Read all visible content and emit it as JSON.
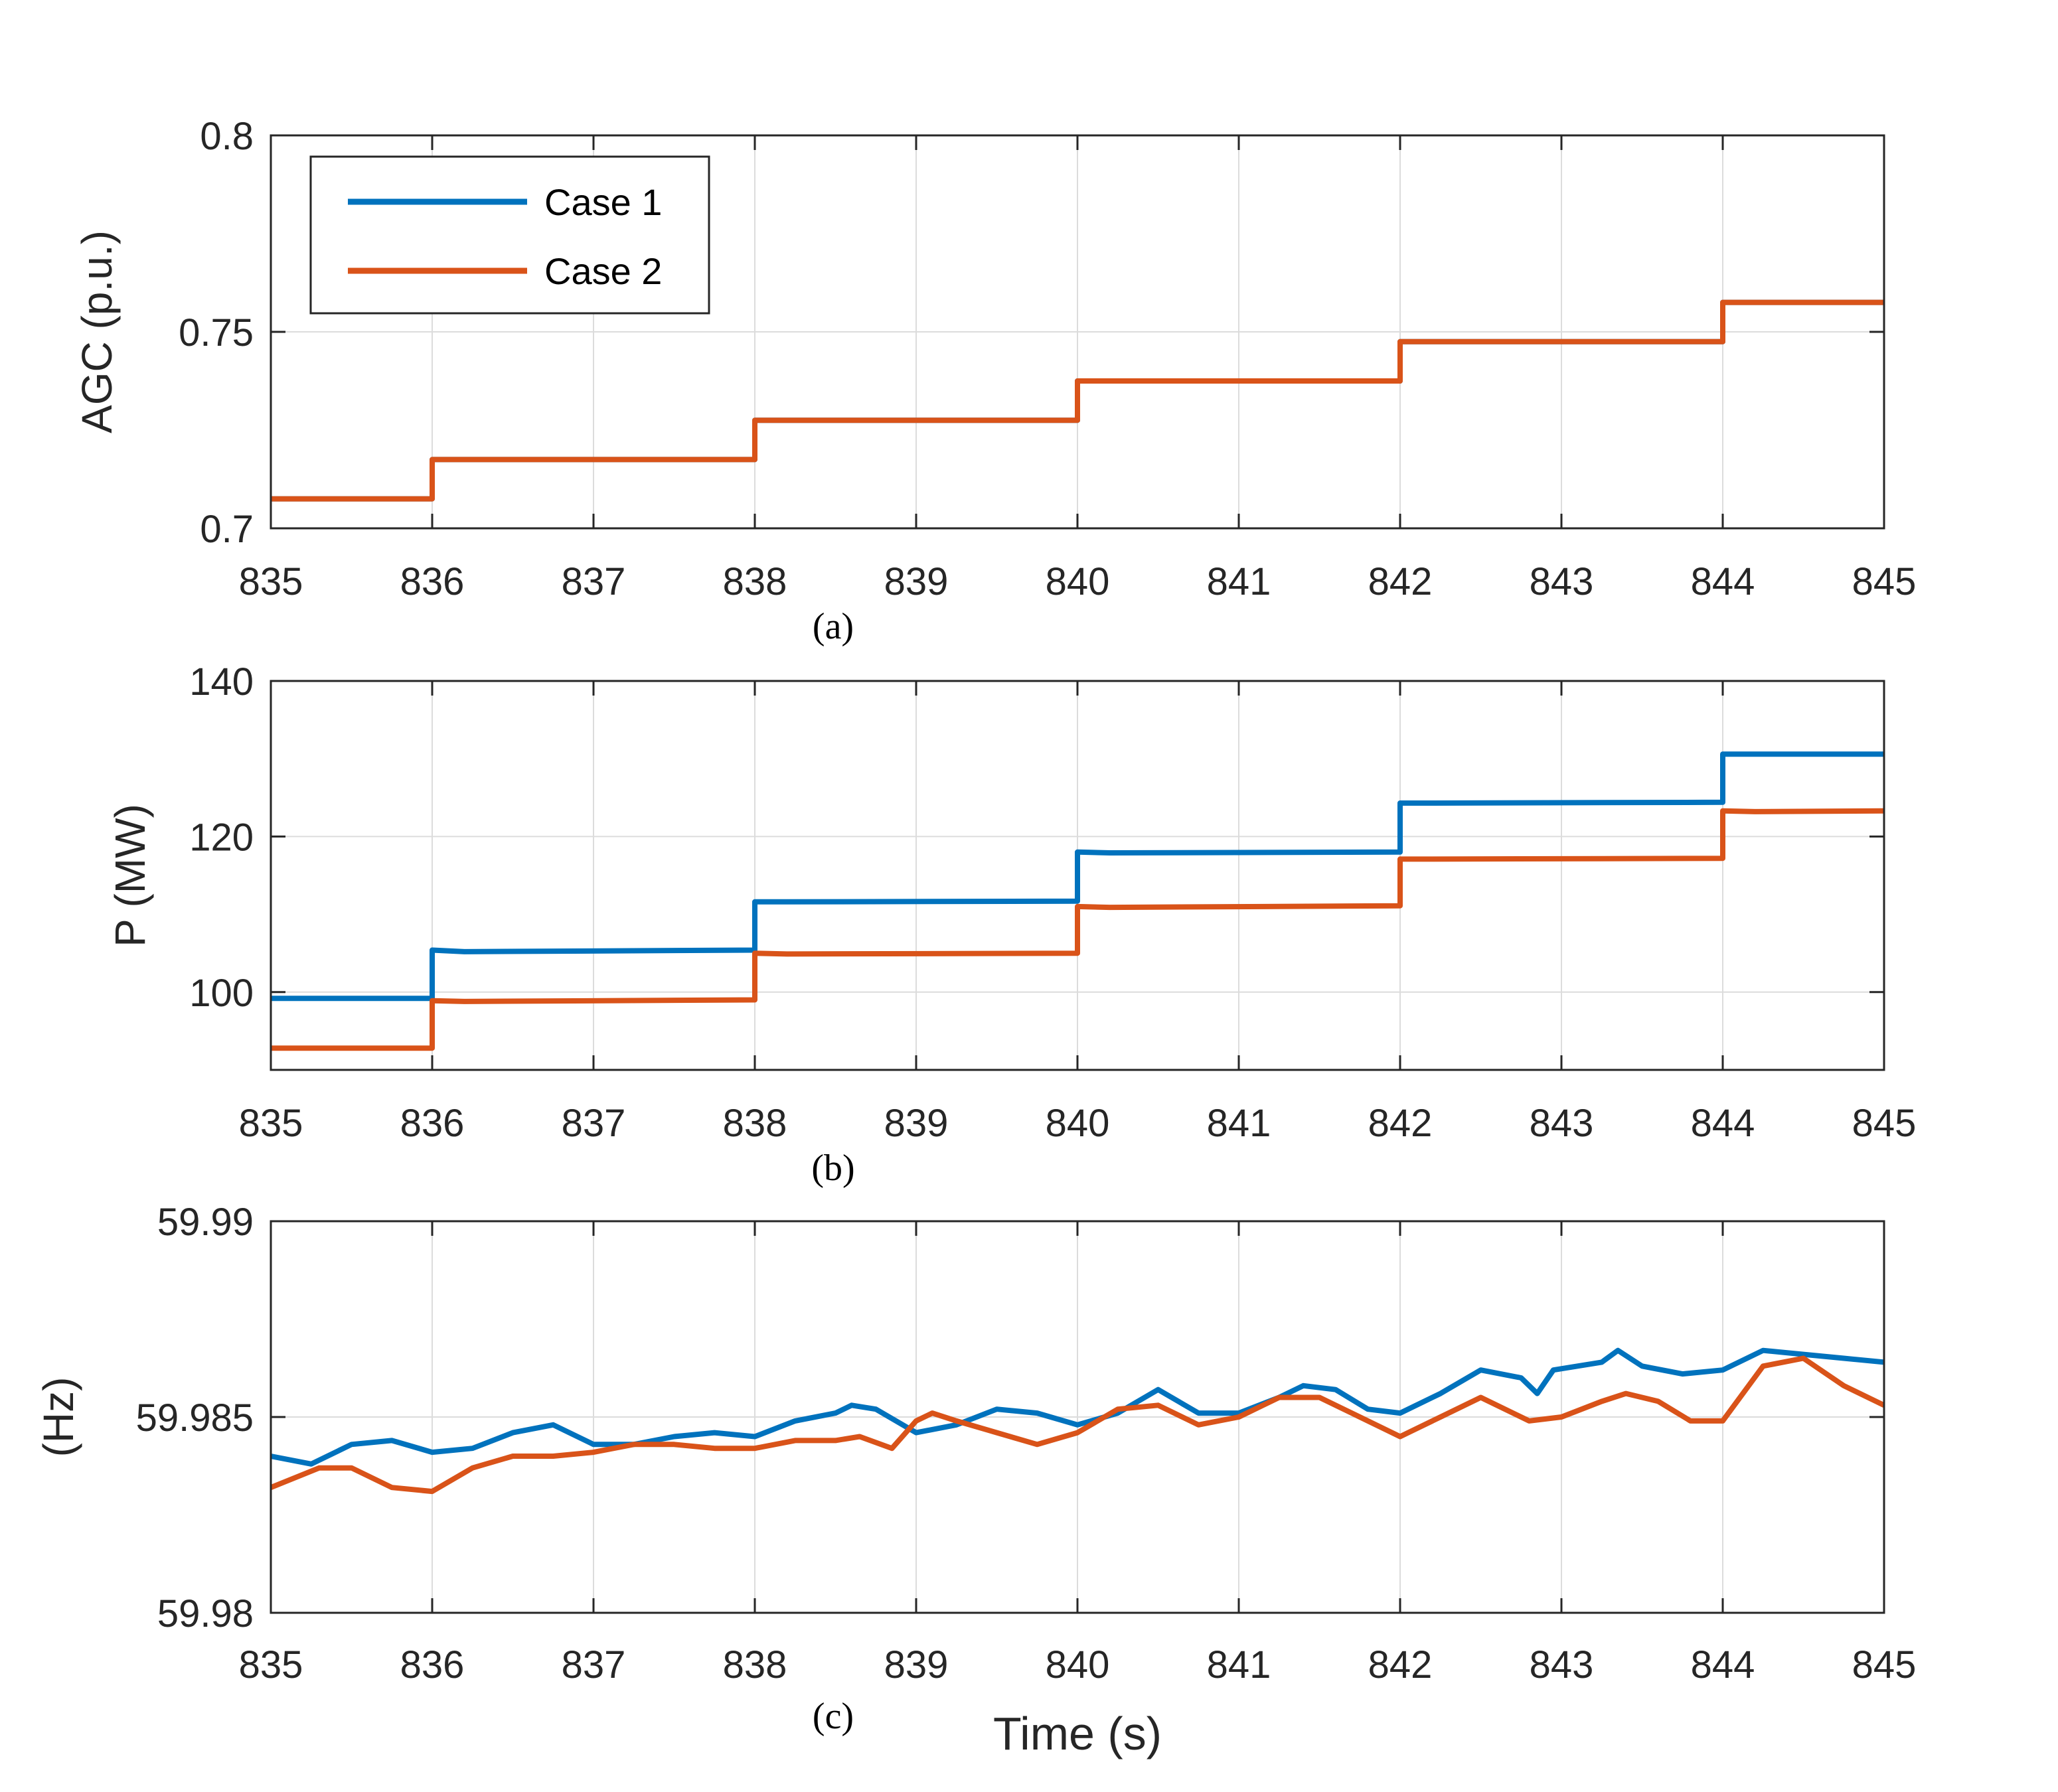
{
  "colors": {
    "case1": "#0072BD",
    "case2": "#D95319",
    "grid": "#DCDCDC",
    "axis": "#262626"
  },
  "legend": {
    "items": [
      "Case 1",
      "Case 2"
    ],
    "position": "top-left"
  },
  "chart_data": [
    {
      "type": "line",
      "title": "",
      "caption": "(a)",
      "xlabel": "",
      "ylabel": "AGC (p.u.)",
      "xlim": [
        835,
        845
      ],
      "ylim": [
        0.7,
        0.8
      ],
      "xticks": [
        835,
        836,
        837,
        838,
        839,
        840,
        841,
        842,
        843,
        844,
        845
      ],
      "yticks": [
        0.7,
        0.75,
        0.8
      ],
      "ytick_labels": [
        "0.7",
        "0.75",
        "0.8"
      ],
      "grid": true,
      "legend": true,
      "series": [
        {
          "name": "Case 1",
          "color_key": "case1",
          "x": [
            835,
            836,
            836,
            838,
            838,
            840,
            840,
            842,
            842,
            844,
            844,
            845
          ],
          "y": [
            0.7075,
            0.7075,
            0.7175,
            0.7175,
            0.7275,
            0.7275,
            0.7375,
            0.7375,
            0.7475,
            0.7475,
            0.7575,
            0.7575
          ]
        },
        {
          "name": "Case 2",
          "color_key": "case2",
          "x": [
            835,
            836,
            836,
            838,
            838,
            840,
            840,
            842,
            842,
            844,
            844,
            845
          ],
          "y": [
            0.7075,
            0.7075,
            0.7175,
            0.7175,
            0.7275,
            0.7275,
            0.7375,
            0.7375,
            0.7475,
            0.7475,
            0.7575,
            0.7575
          ]
        }
      ]
    },
    {
      "type": "line",
      "title": "",
      "caption": "(b)",
      "xlabel": "",
      "ylabel": "P (MW)",
      "xlim": [
        835,
        845
      ],
      "ylim": [
        90,
        140
      ],
      "xticks": [
        835,
        836,
        837,
        838,
        839,
        840,
        841,
        842,
        843,
        844,
        845
      ],
      "yticks": [
        100,
        120,
        140
      ],
      "ytick_labels": [
        "100",
        "120",
        "140"
      ],
      "grid": true,
      "legend": false,
      "series": [
        {
          "name": "Case 1",
          "color_key": "case1",
          "x": [
            835,
            836,
            836,
            836.2,
            838,
            838,
            838.2,
            840,
            840,
            840.2,
            842,
            842,
            842.2,
            844,
            844,
            844.2,
            845
          ],
          "y": [
            99.2,
            99.2,
            105.4,
            105.2,
            105.4,
            111.6,
            111.6,
            111.7,
            118.0,
            117.9,
            118.0,
            124.3,
            124.3,
            124.4,
            130.6,
            130.6,
            130.6
          ]
        },
        {
          "name": "Case 2",
          "color_key": "case2",
          "x": [
            835,
            836,
            836,
            836.2,
            838,
            838,
            838.2,
            840,
            840,
            840.2,
            842,
            842,
            842.2,
            844,
            844,
            844.2,
            845
          ],
          "y": [
            92.8,
            92.8,
            98.9,
            98.8,
            99.0,
            105.0,
            104.9,
            105.0,
            111.0,
            110.9,
            111.1,
            117.1,
            117.1,
            117.2,
            123.3,
            123.2,
            123.3
          ]
        }
      ]
    },
    {
      "type": "line",
      "title": "",
      "caption": "(c)",
      "xlabel": "Time (s)",
      "ylabel": "(Hz)",
      "xlim": [
        835,
        845
      ],
      "ylim": [
        59.98,
        59.99
      ],
      "xticks": [
        835,
        836,
        837,
        838,
        839,
        840,
        841,
        842,
        843,
        844,
        845
      ],
      "yticks": [
        59.98,
        59.985,
        59.99
      ],
      "ytick_labels": [
        "59.98",
        "59.985",
        "59.99"
      ],
      "grid": true,
      "legend": false,
      "series": [
        {
          "name": "Case 1",
          "color_key": "case1",
          "x": [
            835,
            835.25,
            835.5,
            835.75,
            836,
            836.25,
            836.5,
            836.75,
            837,
            837.25,
            837.5,
            837.75,
            838,
            838.25,
            838.5,
            838.6,
            838.75,
            839,
            839.25,
            839.5,
            839.75,
            840,
            840.25,
            840.5,
            840.75,
            841,
            841.25,
            841.4,
            841.6,
            841.8,
            842,
            842.25,
            842.5,
            842.75,
            842.85,
            842.95,
            843.1,
            843.25,
            843.35,
            843.5,
            843.75,
            844,
            844.25,
            844.5,
            844.75,
            845
          ],
          "y": [
            59.984,
            59.9838,
            59.9843,
            59.9844,
            59.9841,
            59.9842,
            59.9846,
            59.9848,
            59.9843,
            59.9843,
            59.9845,
            59.9846,
            59.9845,
            59.9849,
            59.9851,
            59.9853,
            59.9852,
            59.9846,
            59.9848,
            59.9852,
            59.9851,
            59.9848,
            59.9851,
            59.9857,
            59.9851,
            59.9851,
            59.9855,
            59.9858,
            59.9857,
            59.9852,
            59.9851,
            59.9856,
            59.9862,
            59.986,
            59.9856,
            59.9862,
            59.9863,
            59.9864,
            59.9867,
            59.9863,
            59.9861,
            59.9862,
            59.9867,
            59.9866,
            59.9865,
            59.9864
          ]
        },
        {
          "name": "Case 2",
          "color_key": "case2",
          "x": [
            835,
            835.3,
            835.5,
            835.75,
            836,
            836.25,
            836.5,
            836.75,
            837,
            837.25,
            837.5,
            837.75,
            838,
            838.25,
            838.5,
            838.65,
            838.85,
            839,
            839.1,
            839.25,
            839.5,
            839.75,
            840,
            840.25,
            840.5,
            840.75,
            841,
            841.25,
            841.5,
            841.75,
            842,
            842.25,
            842.5,
            842.8,
            843,
            843.25,
            843.4,
            843.6,
            843.8,
            844,
            844.25,
            844.5,
            844.75,
            845
          ],
          "y": [
            59.9832,
            59.9837,
            59.9837,
            59.9832,
            59.9831,
            59.9837,
            59.984,
            59.984,
            59.9841,
            59.9843,
            59.9843,
            59.9842,
            59.9842,
            59.9844,
            59.9844,
            59.9845,
            59.9842,
            59.9849,
            59.9851,
            59.9849,
            59.9846,
            59.9843,
            59.9846,
            59.9852,
            59.9853,
            59.9848,
            59.985,
            59.9855,
            59.9855,
            59.985,
            59.9845,
            59.985,
            59.9855,
            59.9849,
            59.985,
            59.9854,
            59.9856,
            59.9854,
            59.9849,
            59.9849,
            59.9863,
            59.9865,
            59.9858,
            59.9853
          ]
        }
      ]
    }
  ]
}
